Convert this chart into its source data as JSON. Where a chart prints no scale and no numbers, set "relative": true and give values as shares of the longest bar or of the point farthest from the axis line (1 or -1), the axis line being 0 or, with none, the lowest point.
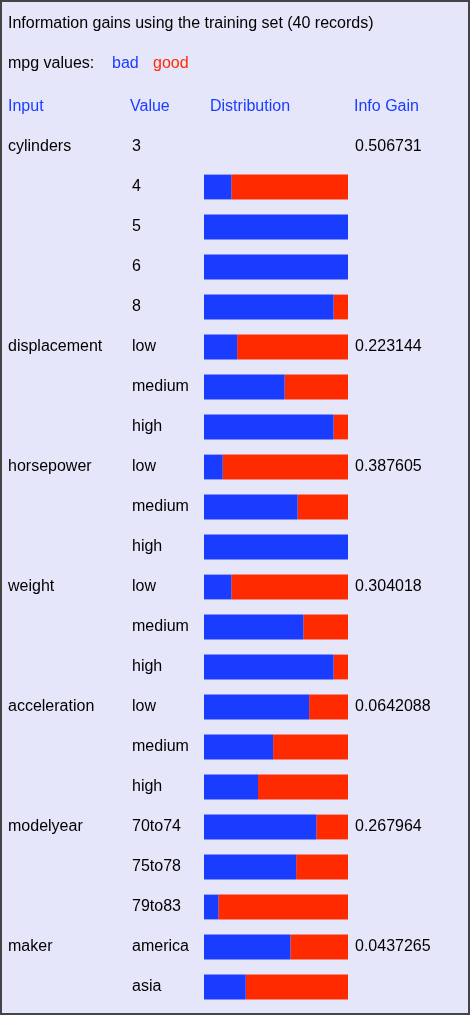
{
  "chart_data": {
    "type": "bar",
    "orientation": "horizontal",
    "stacked": true,
    "relative": true,
    "title": "Information gains using the training set (40 records)",
    "legend_title": "mpg values:",
    "legend": "top left",
    "annotations": [
      "Input",
      "Value",
      "Distribution",
      "Info Gain"
    ],
    "categories": [
      "3",
      "4",
      "5",
      "6",
      "8",
      "low",
      "medium",
      "high",
      "low",
      "medium",
      "high",
      "low",
      "medium",
      "high",
      "low",
      "medium",
      "high",
      "70to74",
      "75to78",
      "79to83",
      "america",
      "asia"
    ],
    "y_categories": [
      "cylinders",
      null,
      null,
      null,
      null,
      "displacement",
      null,
      null,
      "horsepower",
      null,
      null,
      "weight",
      null,
      null,
      "acceleration",
      null,
      null,
      "modelyear",
      null,
      null,
      "maker",
      null
    ],
    "y2_categories": [
      "0.506731",
      null,
      null,
      null,
      null,
      "0.223144",
      null,
      null,
      "0.387605",
      null,
      null,
      "0.304018",
      null,
      null,
      "0.0642088",
      null,
      null,
      "0.267964",
      null,
      null,
      "0.0437265",
      null
    ],
    "series": [
      {
        "name": "bad",
        "color": "#1a3cff",
        "values": [
          null,
          0.19,
          1,
          1,
          0.9,
          0.23,
          0.56,
          0.9,
          0.13,
          0.65,
          1,
          0.19,
          0.69,
          0.9,
          0.73,
          0.48,
          0.375,
          0.78,
          0.64,
          0.1,
          0.6,
          0.29
        ]
      },
      {
        "name": "good",
        "color": "#ff2a00",
        "values": [
          null,
          0.81,
          0,
          0,
          0.1,
          0.77,
          0.44,
          0.1,
          0.87,
          0.35,
          0,
          0.81,
          0.31,
          0.1,
          0.27,
          0.52,
          0.625,
          0.22,
          0.36,
          0.9,
          0.4,
          0.71
        ]
      }
    ]
  }
}
